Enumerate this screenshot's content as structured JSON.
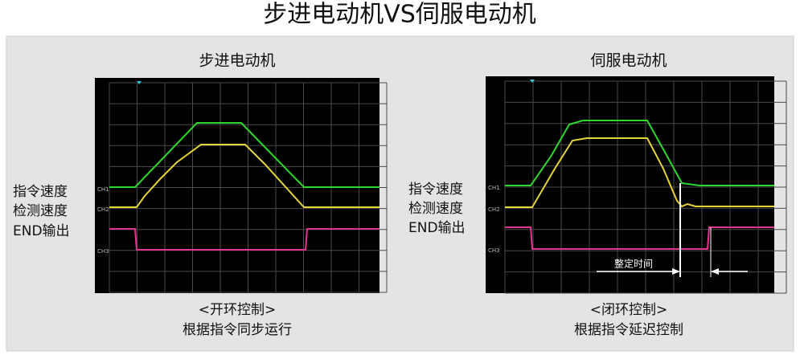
{
  "title": "步进电动机VS伺服电动机",
  "panels": [
    {
      "title": "步进电动机",
      "labels": [
        "指令速度",
        "检测速度",
        "END输出"
      ],
      "channels": [
        "CH1",
        "CH2",
        "CH3"
      ],
      "caption": [
        "<开环控制>",
        "根据指令同步运行"
      ]
    },
    {
      "title": "伺服电动机",
      "labels": [
        "指令速度",
        "检测速度",
        "END输出"
      ],
      "channels": [
        "CH1",
        "CH2",
        "CH3"
      ],
      "caption": [
        "<闭环控制>",
        "根据指令延迟控制"
      ],
      "annotation": "整定时间"
    }
  ]
}
